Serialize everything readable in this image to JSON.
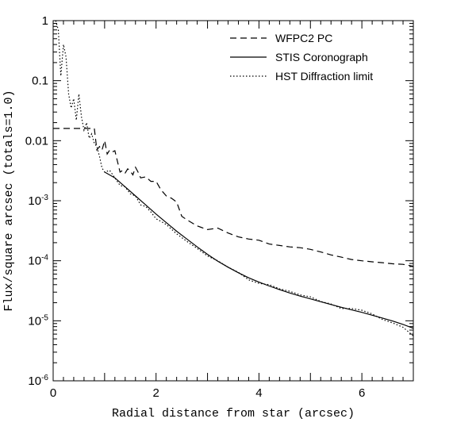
{
  "chart_data": {
    "type": "line",
    "xlabel": "Radial distance from star (arcsec)",
    "ylabel": "Flux/square arcsec (totals=1.0)",
    "xlim": [
      0,
      7
    ],
    "ylim": [
      1e-06,
      1
    ],
    "yscale": "log",
    "x_ticks": [
      {
        "value": 0,
        "label": "0"
      },
      {
        "value": 2,
        "label": "2"
      },
      {
        "value": 4,
        "label": "4"
      },
      {
        "value": 6,
        "label": "6"
      }
    ],
    "y_ticks": [
      {
        "value": 1,
        "base": "1",
        "exp": ""
      },
      {
        "value": 0.1,
        "base": "0.1",
        "exp": ""
      },
      {
        "value": 0.01,
        "base": "0.01",
        "exp": ""
      },
      {
        "value": 0.001,
        "base": "10",
        "exp": "-3"
      },
      {
        "value": 0.0001,
        "base": "10",
        "exp": "-4"
      },
      {
        "value": 1e-05,
        "base": "10",
        "exp": "-5"
      },
      {
        "value": 1e-06,
        "base": "10",
        "exp": "-6"
      }
    ],
    "legend_position": "top-right",
    "grid": false,
    "series": [
      {
        "name": "WFPC2 PC",
        "style": "dashed",
        "color": "#000000",
        "x": [
          0.0,
          0.8,
          0.85,
          0.9,
          0.95,
          1.0,
          1.05,
          1.1,
          1.15,
          1.2,
          1.25,
          1.3,
          1.35,
          1.4,
          1.45,
          1.5,
          1.55,
          1.6,
          1.65,
          1.7,
          1.8,
          1.9,
          2.0,
          2.1,
          2.2,
          2.3,
          2.4,
          2.5,
          2.6,
          2.8,
          3.0,
          3.2,
          3.4,
          3.6,
          3.8,
          4.0,
          4.2,
          4.4,
          4.6,
          4.8,
          5.0,
          5.2,
          5.4,
          5.6,
          5.8,
          6.0,
          6.2,
          6.4,
          6.6,
          6.8,
          7.0
        ],
        "y": [
          0.016,
          0.016,
          0.007,
          0.008,
          0.007,
          0.01,
          0.006,
          0.007,
          0.0065,
          0.0068,
          0.0045,
          0.003,
          0.0032,
          0.0029,
          0.0034,
          0.0031,
          0.0027,
          0.0036,
          0.003,
          0.0024,
          0.0025,
          0.0021,
          0.0021,
          0.0015,
          0.0012,
          0.0011,
          0.00095,
          0.00055,
          0.00048,
          0.00038,
          0.00033,
          0.00035,
          0.00029,
          0.00025,
          0.00023,
          0.00022,
          0.00019,
          0.00018,
          0.00017,
          0.000165,
          0.000155,
          0.00014,
          0.000125,
          0.000115,
          0.000105,
          0.0001,
          9.6e-05,
          9.3e-05,
          8.9e-05,
          8.7e-05,
          8.1e-05
        ]
      },
      {
        "name": "STIS Coronograph",
        "style": "solid",
        "color": "#000000",
        "x": [
          1.0,
          1.2,
          1.4,
          1.6,
          1.8,
          2.0,
          2.2,
          2.4,
          2.6,
          2.8,
          3.0,
          3.2,
          3.4,
          3.6,
          3.8,
          4.0,
          4.2,
          4.4,
          4.6,
          4.8,
          5.0,
          5.2,
          5.4,
          5.6,
          5.8,
          6.0,
          6.2,
          6.4,
          6.6,
          6.8,
          7.0
        ],
        "y": [
          0.003,
          0.0024,
          0.0017,
          0.0012,
          0.00085,
          0.0006,
          0.00043,
          0.00031,
          0.00023,
          0.00017,
          0.000128,
          9.8e-05,
          7.8e-05,
          6.3e-05,
          5.2e-05,
          4.4e-05,
          3.8e-05,
          3.3e-05,
          2.9e-05,
          2.58e-05,
          2.32e-05,
          2.08e-05,
          1.87e-05,
          1.68e-05,
          1.52e-05,
          1.38e-05,
          1.24e-05,
          1.11e-05,
          9.9e-06,
          8.7e-06,
          7.5e-06
        ]
      },
      {
        "name": "HST Diffraction limit",
        "style": "dotted",
        "color": "#000000",
        "x": [
          0.05,
          0.1,
          0.15,
          0.2,
          0.25,
          0.3,
          0.35,
          0.4,
          0.45,
          0.5,
          0.55,
          0.6,
          0.65,
          0.7,
          0.75,
          0.8,
          0.85,
          0.9,
          0.95,
          1.0,
          1.1,
          1.2,
          1.3,
          1.4,
          1.5,
          1.6,
          1.7,
          1.8,
          1.9,
          2.0,
          2.1,
          2.2,
          2.4,
          2.6,
          2.8,
          3.0,
          3.2,
          3.4,
          3.6,
          3.8,
          4.0,
          4.2,
          4.4,
          4.6,
          4.8,
          5.0,
          5.2,
          5.4,
          5.6,
          5.8,
          6.0,
          6.2,
          6.4,
          6.6,
          6.8,
          7.0
        ],
        "y": [
          1.0,
          0.7,
          0.12,
          0.4,
          0.25,
          0.06,
          0.035,
          0.05,
          0.022,
          0.06,
          0.025,
          0.015,
          0.02,
          0.011,
          0.013,
          0.009,
          0.008,
          0.0055,
          0.0035,
          0.003,
          0.0032,
          0.0024,
          0.0018,
          0.0017,
          0.0013,
          0.0012,
          0.00085,
          0.0008,
          0.00065,
          0.0005,
          0.00045,
          0.0004,
          0.00028,
          0.00021,
          0.00016,
          0.00012,
          0.0001,
          7.8e-05,
          6.4e-05,
          4.8e-05,
          4.2e-05,
          4e-05,
          3.4e-05,
          3.1e-05,
          2.7e-05,
          2.5e-05,
          2.1e-05,
          1.9e-05,
          1.6e-05,
          1.6e-05,
          1.5e-05,
          1.3e-05,
          1.05e-05,
          9.2e-06,
          7.8e-06,
          5.6e-06
        ]
      }
    ]
  }
}
